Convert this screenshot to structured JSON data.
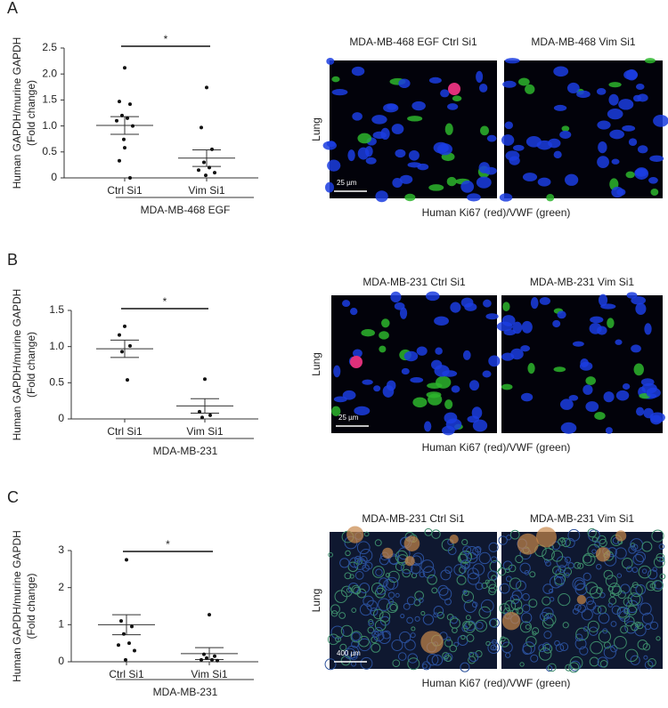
{
  "chart_data": [
    {
      "type": "dot",
      "panel": "A",
      "ylabel": "Human GAPDH/murine GAPDH",
      "ylabel_sub": "(Fold change)",
      "categories": [
        "Ctrl Si1",
        "Vim Si1"
      ],
      "points": [
        [
          2.12,
          1.47,
          1.42,
          1.2,
          1.15,
          1.1,
          1.0,
          0.74,
          0.58,
          0.33,
          0.0
        ],
        [
          1.74,
          0.97,
          0.55,
          0.3,
          0.2,
          0.15,
          0.1,
          0.05
        ]
      ],
      "means": [
        1.01,
        0.38
      ],
      "sem": [
        0.17,
        0.16
      ],
      "ylim": [
        0,
        2.5
      ],
      "yticks": [
        0,
        0.5,
        {
          "value": 1,
          "label": "1.0"
        },
        1.5,
        {
          "value": 2,
          "label": "2.0"
        },
        2.5
      ],
      "significance": "*",
      "group_label": "MDA-MB-468 EGF"
    },
    {
      "type": "dot",
      "panel": "B",
      "ylabel": "Human GAPDH/murine GAPDH",
      "ylabel_sub": "(Fold change)",
      "categories": [
        "Ctrl Si1",
        "Vim Si1"
      ],
      "points": [
        [
          1.28,
          1.16,
          1.01,
          0.93,
          0.54
        ],
        [
          0.55,
          0.1,
          0.05,
          0.02
        ]
      ],
      "means": [
        0.97,
        0.18
      ],
      "sem": [
        0.12,
        0.1
      ],
      "ylim": [
        0,
        1.5
      ],
      "yticks": [
        0,
        0.5,
        {
          "value": 1,
          "label": "1.0"
        },
        1.5
      ],
      "significance": "*",
      "group_label": "MDA-MB-231"
    },
    {
      "type": "dot",
      "panel": "C",
      "ylabel": "Human GAPDH/murine GAPDH",
      "ylabel_sub": "(Fold change)",
      "categories": [
        "Ctrl Si1",
        "Vim Si1"
      ],
      "points": [
        [
          2.75,
          1.1,
          0.95,
          0.75,
          0.5,
          0.45,
          0.3,
          0.05
        ],
        [
          1.27,
          0.2,
          0.15,
          0.1,
          0.05,
          0.05,
          0.03
        ]
      ],
      "means": [
        1.0,
        0.22
      ],
      "sem": [
        0.27,
        0.16
      ],
      "ylim": [
        0,
        3
      ],
      "yticks": [
        0,
        1,
        2,
        3
      ],
      "significance": "*",
      "group_label": "MDA-MB-231"
    }
  ],
  "images": [
    {
      "titles": [
        "MDA-MB-468 EGF Ctrl Si1",
        "MDA-MB-468 Vim Si1"
      ],
      "side_label": "Lung",
      "scale_bar": "25 µm",
      "caption": "Human Ki67 (red)/VWF (green)"
    },
    {
      "titles": [
        "MDA-MB-231 Ctrl Si1",
        "MDA-MB-231 Vim Si1"
      ],
      "side_label": "Lung",
      "scale_bar": "25 µm",
      "caption": "Human Ki67 (red)/VWF (green)"
    },
    {
      "titles": [
        "MDA-MB-231 Ctrl Si1",
        "MDA-MB-231 Vim Si1"
      ],
      "side_label": "Lung",
      "scale_bar": "400 µm",
      "caption": "Human Ki67 (red)/VWF (green)"
    }
  ]
}
